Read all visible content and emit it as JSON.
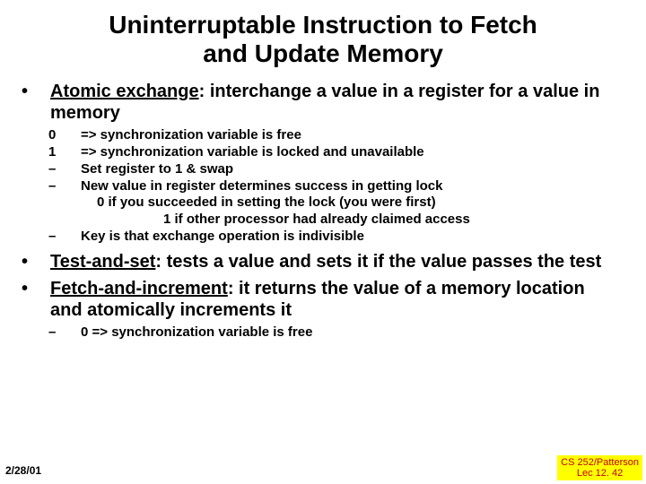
{
  "title_line1": "Uninterruptable Instruction to Fetch",
  "title_line2": "and Update Memory",
  "colors": {
    "text": "#000000",
    "footer_right_text": "#c00000",
    "footer_right_bg": "#ffff00",
    "background": "#ffffff"
  },
  "typography": {
    "font_family": "Comic Sans MS",
    "title_size_pt": 28,
    "main_bullet_size_pt": 20,
    "sub_item_size_pt": 15,
    "footer_date_size_pt": 12,
    "footer_right_size_pt": 11,
    "bold": true
  },
  "bullets": [
    {
      "term": "Atomic exchange",
      "rest": ": interchange a value in a register for a value in memory",
      "subs": [
        {
          "marker": "0",
          "text": "=> synchronization variable is free"
        },
        {
          "marker": "1",
          "text": "=> synchronization variable is locked and unavailable"
        },
        {
          "marker": "–",
          "text": "Set register to 1 & swap"
        },
        {
          "marker": "–",
          "text": "New value in register determines success in getting lock",
          "sublines": [
            "0 if you succeeded in setting the lock (you were first)",
            "1 if other processor had already claimed access"
          ],
          "subline_style": [
            "sub-sub",
            "sub-sub-wide"
          ]
        },
        {
          "marker": "–",
          "text": "Key is that exchange operation is indivisible"
        }
      ]
    },
    {
      "term": "Test-and-set",
      "rest": ": tests a value and sets it if the value passes the test",
      "subs": []
    },
    {
      "term": "Fetch-and-increment",
      "rest": ": it returns the value of a memory location and atomically increments it",
      "subs": [
        {
          "marker": "–",
          "text": "0 => synchronization variable is free"
        }
      ]
    }
  ],
  "bullet_char": "•",
  "footer_date": "2/28/01",
  "footer_right_line1": "CS 252/Patterson",
  "footer_right_line2": "Lec 12. 42"
}
